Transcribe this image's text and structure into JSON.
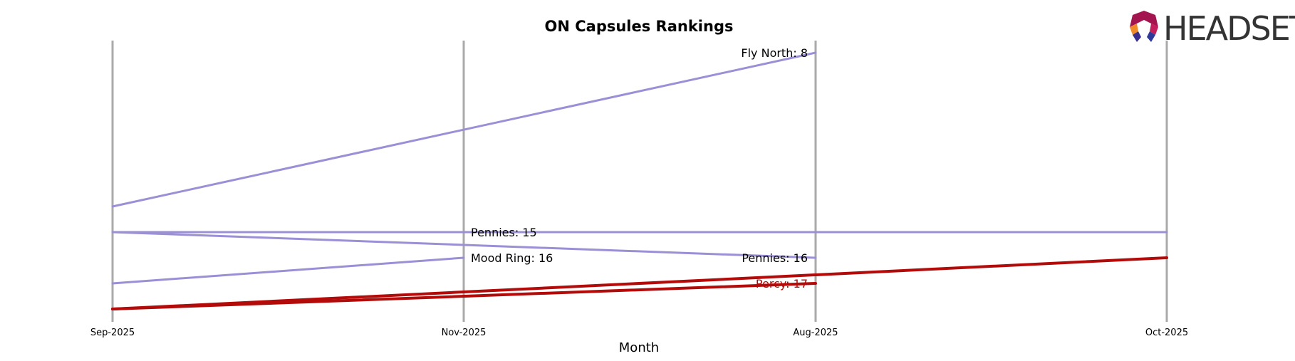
{
  "chart_data": {
    "type": "line",
    "title": "ON Capsules Rankings",
    "xlabel": "Month",
    "ylabel": "",
    "categories": [
      "Sep-2025",
      "Nov-2025",
      "Aug-2025",
      "Oct-2025"
    ],
    "y_inverted": true,
    "ylim": [
      20,
      7
    ],
    "grid": "vertical",
    "series": [
      {
        "name": "Fly North",
        "color": "#9b8fd6",
        "x": [
          "Sep-2025",
          "Aug-2025"
        ],
        "y": [
          14,
          8
        ]
      },
      {
        "name": "Pennies",
        "color": "#9b8fd6",
        "x": [
          "Sep-2025",
          "Nov-2025",
          "Aug-2025",
          "Oct-2025"
        ],
        "y": [
          15,
          15,
          15,
          15
        ]
      },
      {
        "name": "Pennies",
        "color": "#9b8fd6",
        "x": [
          "Sep-2025",
          "Aug-2025"
        ],
        "y": [
          15,
          16
        ]
      },
      {
        "name": "Mood Ring",
        "color": "#9b8fd6",
        "x": [
          "Sep-2025",
          "Nov-2025"
        ],
        "y": [
          17,
          16
        ]
      },
      {
        "name": "Percy",
        "color": "#b30a0a",
        "x": [
          "Sep-2025",
          "Aug-2025"
        ],
        "y": [
          18,
          17
        ]
      },
      {
        "name": "",
        "color": "#b30a0a",
        "x": [
          "Sep-2025",
          "Oct-2025"
        ],
        "y": [
          18,
          16
        ]
      }
    ],
    "labels": [
      {
        "text": "Fly North: 8",
        "x": "Aug-2025",
        "y": 8,
        "anchor": "end",
        "color": "#000000"
      },
      {
        "text": "Pennies: 15",
        "x": "Nov-2025",
        "y": 15,
        "anchor": "start",
        "color": "#000000"
      },
      {
        "text": "Mood Ring: 16",
        "x": "Nov-2025",
        "y": 16,
        "anchor": "start",
        "color": "#000000"
      },
      {
        "text": "Pennies: 16",
        "x": "Aug-2025",
        "y": 16,
        "anchor": "end",
        "color": "#000000"
      },
      {
        "text": "Percy: 17",
        "x": "Aug-2025",
        "y": 17,
        "anchor": "end",
        "color": "#b30a0a"
      }
    ]
  },
  "brand": {
    "name": "HEADSET"
  }
}
